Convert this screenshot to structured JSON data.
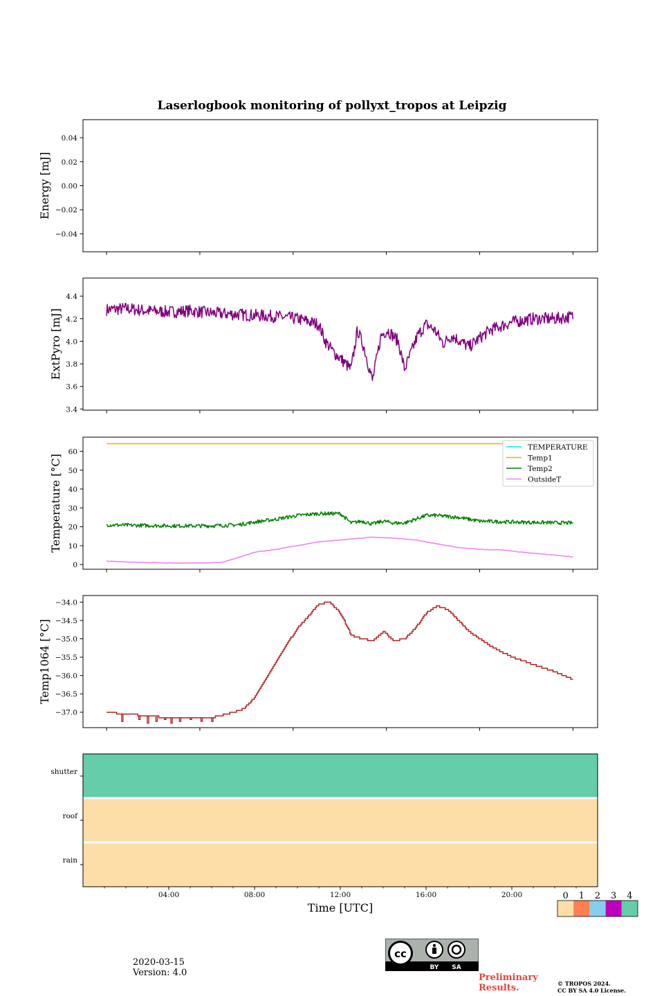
{
  "figure": {
    "title": "Laserlogbook monitoring of pollyxt_tropos at Leipzig",
    "date": "2020-03-15",
    "version": "Version: 4.0",
    "preliminary": [
      "Preliminary",
      "Results."
    ],
    "copyright": [
      "© TROPOS 2024.",
      "CC BY SA 4.0 License."
    ],
    "license_labels": [
      "BY",
      "SA"
    ]
  },
  "colors": {
    "extpyro": "#800080",
    "temperature": "#00e5ee",
    "temp1": "#ffa500",
    "temp2": "#008000",
    "outside": "#ee82ee",
    "temp1064": "#b22222",
    "flag": [
      "#fddea8",
      "#ff7f50",
      "#87ceeb",
      "#c000c0",
      "#66cdaa"
    ]
  },
  "chart_data": [
    {
      "id": "energy",
      "type": "line",
      "ylabel": "Energy [mJ]",
      "ylim": [
        -0.055,
        0.055
      ],
      "yticks": [
        0.04,
        0.02,
        0.0,
        -0.02,
        -0.04
      ],
      "ytick_labels": [
        "0.04",
        "0.02",
        "0.00",
        "−0.02",
        "−0.04"
      ],
      "xlim_hours": [
        0,
        24
      ],
      "xticks_hours": [
        1.1,
        5.45,
        9.8,
        14.15,
        18.5,
        22.85
      ],
      "series": []
    },
    {
      "id": "extpyro",
      "type": "line",
      "ylabel": "ExtPyro [mJ]",
      "ylim": [
        3.39,
        4.56
      ],
      "yticks": [
        4.4,
        4.2,
        4.0,
        3.8,
        3.6,
        3.4
      ],
      "ytick_labels": [
        "4.4",
        "4.2",
        "4.0",
        "3.8",
        "3.6",
        "3.4"
      ],
      "xlim_hours": [
        0,
        24
      ],
      "xticks_hours": [
        1.1,
        5.45,
        9.8,
        14.15,
        18.5,
        22.85
      ],
      "series": [
        {
          "name": "ExtPyro",
          "color_key": "extpyro",
          "noise": 0.055,
          "x": [
            1.1,
            2.0,
            3.0,
            4.0,
            5.0,
            6.0,
            7.0,
            8.0,
            9.0,
            10.0,
            11.0,
            11.3,
            11.7,
            12.0,
            12.5,
            12.8,
            13.1,
            13.5,
            13.9,
            14.2,
            14.7,
            15.0,
            15.3,
            15.6,
            16.0,
            16.4,
            16.8,
            17.2,
            17.6,
            18.0,
            18.5,
            19.0,
            20.0,
            21.0,
            22.0,
            22.85
          ],
          "y": [
            4.28,
            4.29,
            4.27,
            4.26,
            4.27,
            4.25,
            4.24,
            4.23,
            4.22,
            4.2,
            4.15,
            4.0,
            3.9,
            3.85,
            3.75,
            4.1,
            3.95,
            3.65,
            4.05,
            4.1,
            4.0,
            3.75,
            3.9,
            4.05,
            4.15,
            4.1,
            3.98,
            4.05,
            4.0,
            3.95,
            4.03,
            4.1,
            4.17,
            4.2,
            4.2,
            4.22
          ]
        }
      ]
    },
    {
      "id": "temperature",
      "type": "line",
      "ylabel": "Temperature [°C]",
      "ylim": [
        -2.5,
        67.5
      ],
      "yticks": [
        60,
        50,
        40,
        30,
        20,
        10,
        0
      ],
      "ytick_labels": [
        "60",
        "50",
        "40",
        "30",
        "20",
        "10",
        "0"
      ],
      "xlim_hours": [
        0,
        24
      ],
      "xticks_hours": [
        1.1,
        5.45,
        9.8,
        14.15,
        18.5,
        22.85
      ],
      "legend": {
        "position": "top-right",
        "entries": [
          "TEMPERATURE",
          "Temp1",
          "Temp2",
          "OutsideT"
        ]
      },
      "series": [
        {
          "name": "TEMPERATURE",
          "color_key": "temperature",
          "x": [],
          "y": []
        },
        {
          "name": "Temp1",
          "color_key": "temp1",
          "noise": 0,
          "x": [
            1.1,
            22.85
          ],
          "y": [
            64,
            64
          ]
        },
        {
          "name": "Temp2",
          "color_key": "temp2",
          "noise": 1.0,
          "x": [
            1.1,
            4.0,
            6.0,
            7.2,
            8.0,
            9.0,
            10.0,
            11.0,
            12.0,
            12.5,
            13.0,
            13.5,
            14.0,
            14.5,
            15.0,
            15.5,
            16.0,
            16.5,
            17.5,
            18.5,
            20.0,
            22.85
          ],
          "y": [
            21,
            20.5,
            20.5,
            21,
            22.5,
            24,
            26,
            27,
            27,
            22,
            23,
            21.5,
            23,
            22,
            22,
            24,
            26,
            26,
            25,
            23,
            22.5,
            22
          ]
        },
        {
          "name": "OutsideT",
          "color_key": "outside",
          "noise": 0.15,
          "x": [
            1.1,
            2.5,
            4.0,
            5.5,
            6.5,
            7.2,
            8.0,
            9.0,
            10.0,
            11.0,
            12.0,
            13.0,
            13.5,
            14.5,
            15.5,
            16.5,
            17.5,
            18.5,
            19.5,
            20.5,
            21.5,
            22.85
          ],
          "y": [
            1.8,
            1.2,
            0.8,
            0.8,
            1.2,
            3.5,
            6.5,
            8.0,
            10.0,
            12.0,
            13.0,
            14.0,
            14.5,
            14.0,
            13.0,
            11.0,
            9.0,
            8.0,
            7.8,
            6.5,
            5.5,
            4.0
          ]
        }
      ]
    },
    {
      "id": "temp1064",
      "type": "line",
      "ylabel": "Temp1064 [°C]",
      "ylim": [
        -37.42,
        -33.82
      ],
      "yticks": [
        -34.0,
        -34.5,
        -35.0,
        -35.5,
        -36.0,
        -36.5,
        -37.0
      ],
      "ytick_labels": [
        "−34.0",
        "−34.5",
        "−35.0",
        "−35.5",
        "−36.0",
        "−36.5",
        "−37.0"
      ],
      "xlim_hours": [
        0,
        24
      ],
      "xticks_hours": [
        1.1,
        5.45,
        9.8,
        14.15,
        18.5,
        22.85
      ],
      "series": [
        {
          "name": "Temp1064",
          "color_key": "temp1064",
          "step": 0.05,
          "x": [
            1.1,
            2.0,
            4.0,
            6.0,
            7.0,
            7.5,
            8.0,
            9.0,
            10.0,
            11.0,
            11.5,
            12.0,
            12.5,
            13.0,
            13.5,
            14.0,
            14.5,
            15.0,
            15.5,
            16.0,
            16.5,
            17.0,
            17.5,
            18.0,
            19.0,
            20.0,
            21.0,
            22.0,
            22.85
          ],
          "y": [
            -37.0,
            -37.05,
            -37.15,
            -37.15,
            -37.0,
            -36.9,
            -36.6,
            -35.6,
            -34.7,
            -34.05,
            -34.0,
            -34.3,
            -34.9,
            -35.0,
            -35.05,
            -34.8,
            -35.05,
            -35.0,
            -34.7,
            -34.3,
            -34.1,
            -34.2,
            -34.5,
            -34.8,
            -35.2,
            -35.5,
            -35.7,
            -35.9,
            -36.1
          ]
        },
        {
          "name": "Temp1064-drops",
          "color_key": "temp1064",
          "drop": true,
          "x": [
            1.8,
            2.6,
            3.0,
            3.4,
            3.8,
            4.1,
            4.5,
            5.0,
            5.5,
            6.0
          ],
          "y": [
            -37.25,
            -37.2,
            -37.3,
            -37.25,
            -37.2,
            -37.3,
            -37.25,
            -37.2,
            -37.25,
            -37.25
          ]
        }
      ]
    },
    {
      "id": "flags",
      "type": "heatmap",
      "ylabel": "",
      "rows": [
        "shutter",
        "roof",
        "rain"
      ],
      "values": [
        4,
        0,
        0
      ],
      "xlabel": "Time [UTC]",
      "xlim_hours": [
        0,
        24
      ],
      "xticks_hours": [
        4,
        8,
        12,
        16,
        20
      ],
      "xtick_labels": [
        "04:00",
        "08:00",
        "12:00",
        "16:00",
        "20:00"
      ],
      "colorbar": {
        "ticks": [
          "0",
          "1",
          "2",
          "3",
          "4"
        ]
      }
    }
  ]
}
